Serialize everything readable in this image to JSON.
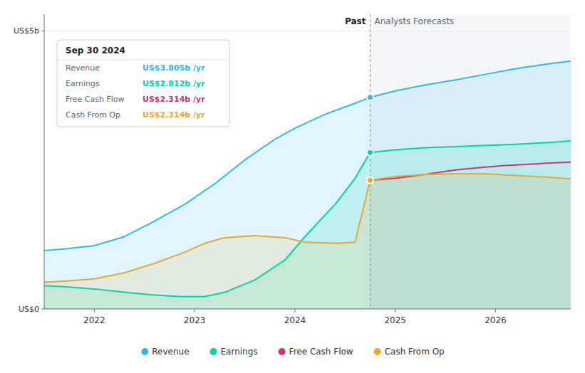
{
  "chart_data": {
    "type": "line",
    "xlim": [
      2021.5,
      2026.75
    ],
    "ylim": [
      0,
      5.3
    ],
    "xticks": [
      2022,
      2023,
      2024,
      2025,
      2026
    ],
    "yticks": [
      {
        "value": 0,
        "label": "US$0"
      },
      {
        "value": 5,
        "label": "US$5b"
      }
    ],
    "grid": true,
    "legend": "bottom",
    "series": [
      {
        "name": "Revenue",
        "color": "#2db8f5",
        "type": "area",
        "x": [
          2021.5,
          2021.7,
          2022.0,
          2022.3,
          2022.6,
          2022.9,
          2023.2,
          2023.5,
          2023.8,
          2024.0,
          2024.3,
          2024.6,
          2024.75,
          2025.0,
          2025.3,
          2025.6,
          2025.9,
          2026.2,
          2026.5,
          2026.75
        ],
        "values": [
          1.05,
          1.08,
          1.14,
          1.3,
          1.58,
          1.88,
          2.25,
          2.68,
          3.05,
          3.25,
          3.5,
          3.7,
          3.805,
          3.92,
          4.03,
          4.12,
          4.22,
          4.32,
          4.4,
          4.46
        ]
      },
      {
        "name": "Earnings",
        "color": "#00d4a8",
        "type": "area",
        "x": [
          2021.5,
          2021.7,
          2022.0,
          2022.3,
          2022.6,
          2022.9,
          2023.1,
          2023.3,
          2023.6,
          2023.9,
          2024.1,
          2024.4,
          2024.6,
          2024.75,
          2025.0,
          2025.3,
          2025.6,
          2025.9,
          2026.2,
          2026.5,
          2026.75
        ],
        "values": [
          0.42,
          0.4,
          0.36,
          0.3,
          0.25,
          0.22,
          0.22,
          0.3,
          0.52,
          0.88,
          1.3,
          1.88,
          2.35,
          2.812,
          2.86,
          2.9,
          2.92,
          2.94,
          2.96,
          2.99,
          3.02
        ]
      },
      {
        "name": "Free Cash Flow",
        "color": "#d4317a",
        "type": "line",
        "x": [
          2024.75,
          2025.0,
          2025.3,
          2025.6,
          2025.9,
          2026.1,
          2026.3,
          2026.5,
          2026.75
        ],
        "values": [
          2.314,
          2.35,
          2.42,
          2.5,
          2.55,
          2.58,
          2.6,
          2.62,
          2.64
        ]
      },
      {
        "name": "Cash From Op",
        "color": "#e8a830",
        "type": "area",
        "x": [
          2021.5,
          2021.7,
          2022.0,
          2022.3,
          2022.6,
          2022.9,
          2023.1,
          2023.3,
          2023.6,
          2023.9,
          2024.1,
          2024.4,
          2024.6,
          2024.75,
          2025.0,
          2025.3,
          2025.6,
          2025.9,
          2026.2,
          2026.5,
          2026.75
        ],
        "values": [
          0.48,
          0.5,
          0.54,
          0.65,
          0.82,
          1.02,
          1.18,
          1.28,
          1.32,
          1.28,
          1.2,
          1.18,
          1.2,
          2.314,
          2.38,
          2.42,
          2.43,
          2.43,
          2.4,
          2.37,
          2.34
        ]
      }
    ],
    "annotations": {
      "divider_x": 2024.75,
      "past_label": "Past",
      "forecast_label": "Analysts Forecasts",
      "tooltip": {
        "title": "Sep 30 2024",
        "rows": [
          {
            "label": "Revenue",
            "value": "US$3.805b /yr",
            "color": "#2db8f5"
          },
          {
            "label": "Earnings",
            "value": "US$2.812b /yr",
            "color": "#00d4a8"
          },
          {
            "label": "Free Cash Flow",
            "value": "US$2.314b /yr",
            "color": "#d4317a"
          },
          {
            "label": "Cash From Op",
            "value": "US$2.314b /yr",
            "color": "#e8a830"
          }
        ]
      }
    }
  }
}
